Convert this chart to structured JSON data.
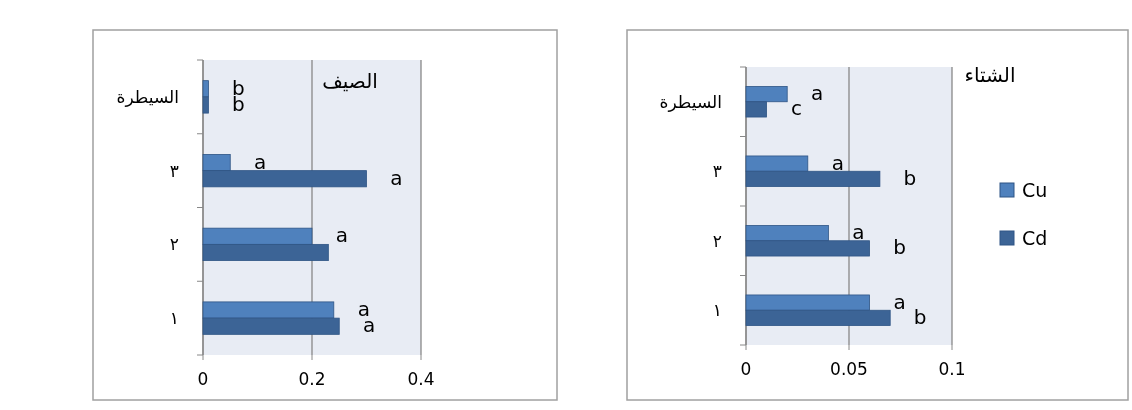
{
  "chart_data": [
    {
      "type": "bar",
      "orientation": "horizontal",
      "title": "الصيف",
      "categories": [
        "السيطرة",
        "٣",
        "٢",
        "١"
      ],
      "xlim": [
        0,
        0.4
      ],
      "xticks": [
        0,
        0.2,
        0.4
      ],
      "grid": "x",
      "series": [
        {
          "color": "#4f81bd",
          "values": [
            0.01,
            0.05,
            0.2,
            0.24
          ],
          "value_labels": [
            "b",
            "a",
            "a",
            "a"
          ]
        },
        {
          "color": "#3c6496",
          "values": [
            0.01,
            0.3,
            0.23,
            0.25
          ],
          "value_labels": [
            "b",
            "a",
            null,
            "a"
          ]
        }
      ]
    },
    {
      "type": "bar",
      "orientation": "horizontal",
      "title": "الشتاء",
      "categories": [
        "السيطرة",
        "٣",
        "٢",
        "١"
      ],
      "xlim": [
        0,
        0.1
      ],
      "xticks": [
        0,
        0.05,
        0.1
      ],
      "grid": "x",
      "legend": "right",
      "series": [
        {
          "name": "Cu",
          "color": "#4f81bd",
          "values": [
            0.02,
            0.03,
            0.04,
            0.06
          ],
          "value_labels": [
            "a",
            "a",
            "a",
            "a"
          ]
        },
        {
          "name": "Cd",
          "color": "#3c6496",
          "values": [
            0.01,
            0.065,
            0.06,
            0.07
          ],
          "value_labels": [
            "c",
            "b",
            "b",
            "b"
          ]
        }
      ]
    }
  ]
}
